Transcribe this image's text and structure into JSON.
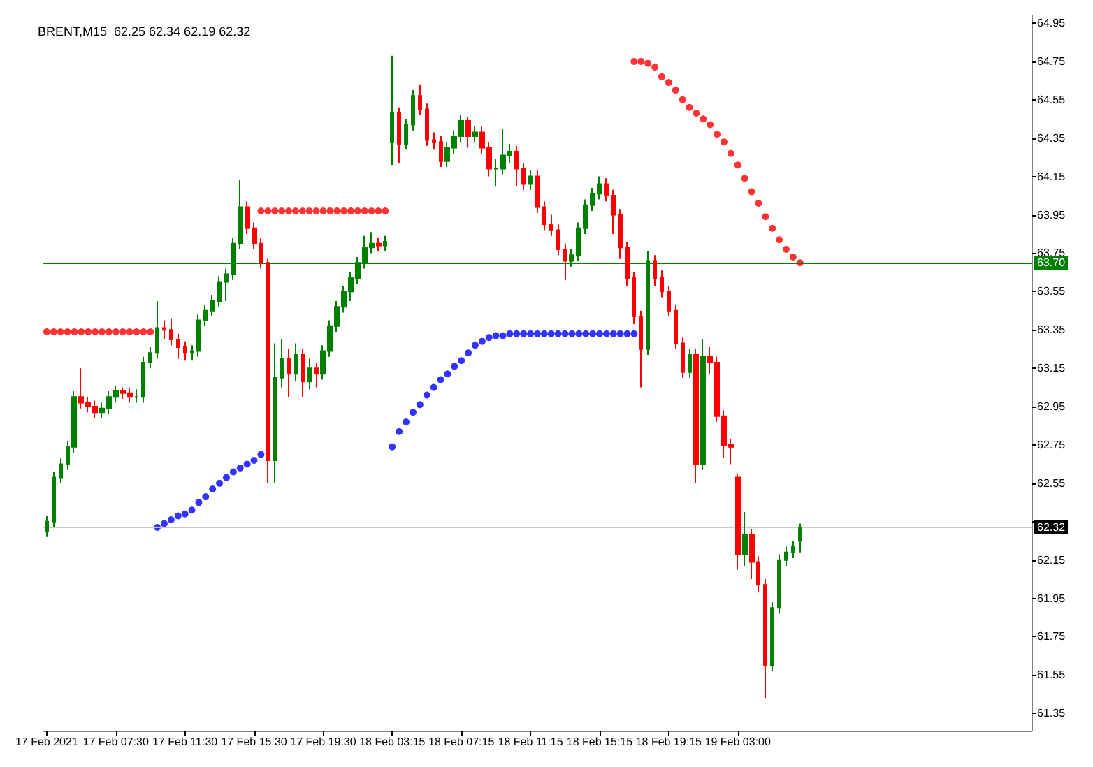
{
  "chart_data": {
    "type": "candlestick",
    "title": "BRENT,M15  62.25 62.34 62.19 62.32",
    "categories": [
      "17 Feb 2021",
      null,
      null,
      null,
      null,
      null,
      null,
      null,
      null,
      null,
      "17 Feb 07:30",
      null,
      null,
      null,
      null,
      null,
      null,
      null,
      null,
      null,
      "17 Feb 11:30",
      null,
      null,
      null,
      null,
      null,
      null,
      null,
      null,
      null,
      "17 Feb 15:30",
      null,
      null,
      null,
      null,
      null,
      null,
      null,
      null,
      null,
      "17 Feb 19:30",
      null,
      null,
      null,
      null,
      null,
      null,
      null,
      null,
      null,
      "18 Feb 03:15",
      null,
      null,
      null,
      null,
      null,
      null,
      null,
      null,
      null,
      "18 Feb 07:15",
      null,
      null,
      null,
      null,
      null,
      null,
      null,
      null,
      null,
      "18 Feb 11:15",
      null,
      null,
      null,
      null,
      null,
      null,
      null,
      null,
      null,
      "18 Feb 15:15",
      null,
      null,
      null,
      null,
      null,
      null,
      null,
      null,
      null,
      "18 Feb 19:15",
      null,
      null,
      null,
      null,
      null,
      null,
      null,
      null,
      null,
      "19 Feb 03:00",
      null,
      null,
      null,
      null,
      null,
      null,
      null,
      null,
      null,
      null,
      null,
      null,
      null,
      null,
      null,
      null,
      null,
      null,
      null,
      null,
      null,
      null,
      null,
      null,
      null,
      null,
      null,
      null,
      null,
      null,
      null,
      null,
      null,
      null,
      null,
      null,
      null,
      null,
      null,
      null,
      null,
      null
    ],
    "ohlc": [
      [
        62.3,
        62.38,
        62.27,
        62.35
      ],
      [
        62.35,
        62.61,
        62.32,
        62.58
      ],
      [
        62.58,
        62.68,
        62.55,
        62.65
      ],
      [
        62.65,
        62.77,
        62.62,
        62.74
      ],
      [
        62.74,
        63.03,
        62.71,
        63.0
      ],
      [
        63.0,
        63.15,
        62.94,
        62.97
      ],
      [
        62.97,
        63.0,
        62.92,
        62.95
      ],
      [
        62.95,
        62.98,
        62.89,
        62.92
      ],
      [
        62.92,
        62.97,
        62.89,
        62.94
      ],
      [
        62.94,
        63.03,
        62.91,
        63.0
      ],
      [
        63.0,
        63.06,
        62.97,
        63.03
      ],
      [
        63.03,
        63.05,
        62.99,
        63.02
      ],
      [
        63.02,
        63.05,
        62.97,
        63.0
      ],
      [
        63.0,
        63.04,
        62.97,
        63.0
      ],
      [
        63.0,
        63.21,
        62.97,
        63.18
      ],
      [
        63.18,
        63.26,
        63.15,
        63.23
      ],
      [
        63.23,
        63.5,
        63.2,
        63.36
      ],
      [
        63.36,
        63.4,
        63.3,
        63.35
      ],
      [
        63.35,
        63.41,
        63.27,
        63.3
      ],
      [
        63.3,
        63.33,
        63.2,
        63.26
      ],
      [
        63.26,
        63.29,
        63.19,
        63.23
      ],
      [
        63.23,
        63.27,
        63.19,
        63.24
      ],
      [
        63.24,
        63.43,
        63.21,
        63.4
      ],
      [
        63.4,
        63.48,
        63.37,
        63.45
      ],
      [
        63.45,
        63.53,
        63.42,
        63.5
      ],
      [
        63.5,
        63.63,
        63.47,
        63.6
      ],
      [
        63.6,
        63.67,
        63.5,
        63.64
      ],
      [
        63.64,
        63.83,
        63.61,
        63.8
      ],
      [
        63.8,
        64.13,
        63.77,
        63.99
      ],
      [
        63.99,
        64.02,
        63.85,
        63.88
      ],
      [
        63.88,
        63.91,
        63.77,
        63.8
      ],
      [
        63.8,
        63.83,
        63.67,
        63.7
      ],
      [
        63.7,
        63.72,
        62.55,
        62.67
      ],
      [
        62.67,
        63.28,
        62.55,
        63.1
      ],
      [
        63.1,
        63.3,
        63.05,
        63.2
      ],
      [
        63.2,
        63.25,
        63.0,
        63.12
      ],
      [
        63.12,
        63.28,
        63.08,
        63.22
      ],
      [
        63.22,
        63.25,
        63.0,
        63.08
      ],
      [
        63.08,
        63.2,
        63.04,
        63.15
      ],
      [
        63.15,
        63.18,
        63.05,
        63.12
      ],
      [
        63.12,
        63.27,
        63.09,
        63.24
      ],
      [
        63.24,
        63.4,
        63.21,
        63.37
      ],
      [
        63.37,
        63.5,
        63.34,
        63.47
      ],
      [
        63.47,
        63.58,
        63.44,
        63.55
      ],
      [
        63.55,
        63.65,
        63.5,
        63.62
      ],
      [
        63.62,
        63.73,
        63.59,
        63.7
      ],
      [
        63.7,
        63.84,
        63.67,
        63.78
      ],
      [
        63.78,
        63.86,
        63.75,
        63.8
      ],
      [
        63.8,
        63.83,
        63.76,
        63.79
      ],
      [
        63.79,
        63.84,
        63.76,
        63.81
      ],
      [
        64.33,
        64.78,
        64.21,
        64.48
      ],
      [
        64.48,
        64.51,
        64.22,
        64.32
      ],
      [
        64.32,
        64.45,
        64.29,
        64.42
      ],
      [
        64.42,
        64.6,
        64.39,
        64.57
      ],
      [
        64.57,
        64.63,
        64.47,
        64.5
      ],
      [
        64.5,
        64.53,
        64.31,
        64.34
      ],
      [
        64.34,
        64.38,
        64.29,
        64.33
      ],
      [
        64.33,
        64.36,
        64.2,
        64.23
      ],
      [
        64.23,
        64.33,
        64.2,
        64.3
      ],
      [
        64.3,
        64.39,
        64.27,
        64.36
      ],
      [
        64.36,
        64.47,
        64.33,
        64.44
      ],
      [
        64.44,
        64.46,
        64.3,
        64.36
      ],
      [
        64.36,
        64.41,
        64.33,
        64.38
      ],
      [
        64.38,
        64.41,
        64.27,
        64.3
      ],
      [
        64.3,
        64.33,
        64.15,
        64.19
      ],
      [
        64.19,
        64.24,
        64.1,
        64.19
      ],
      [
        64.19,
        64.4,
        64.16,
        64.26
      ],
      [
        64.26,
        64.32,
        64.22,
        64.28
      ],
      [
        64.28,
        64.31,
        64.1,
        64.19
      ],
      [
        64.19,
        64.22,
        64.08,
        64.11
      ],
      [
        64.11,
        64.18,
        64.08,
        64.15
      ],
      [
        64.15,
        64.18,
        63.96,
        63.99
      ],
      [
        63.99,
        64.02,
        63.87,
        63.9
      ],
      [
        63.9,
        63.95,
        63.84,
        63.87
      ],
      [
        63.87,
        63.9,
        63.74,
        63.77
      ],
      [
        63.77,
        63.8,
        63.61,
        63.71
      ],
      [
        63.71,
        63.77,
        63.68,
        63.74
      ],
      [
        63.74,
        63.91,
        63.71,
        63.88
      ],
      [
        63.88,
        64.03,
        63.85,
        64.0
      ],
      [
        64.0,
        64.09,
        63.97,
        64.06
      ],
      [
        64.06,
        64.15,
        64.03,
        64.11
      ],
      [
        64.11,
        64.14,
        64.02,
        64.05
      ],
      [
        64.05,
        64.08,
        63.85,
        63.95
      ],
      [
        63.95,
        63.98,
        63.72,
        63.78
      ],
      [
        63.78,
        63.81,
        63.58,
        63.62
      ],
      [
        63.62,
        63.65,
        63.38,
        63.42
      ],
      [
        63.42,
        63.45,
        63.05,
        63.25
      ],
      [
        63.25,
        63.76,
        63.22,
        63.71
      ],
      [
        63.71,
        63.74,
        63.58,
        63.62
      ],
      [
        63.62,
        63.66,
        63.52,
        63.55
      ],
      [
        63.55,
        63.58,
        63.42,
        63.45
      ],
      [
        63.45,
        63.48,
        63.25,
        63.28
      ],
      [
        63.28,
        63.31,
        63.1,
        63.13
      ],
      [
        63.13,
        63.25,
        63.1,
        63.22
      ],
      [
        63.22,
        63.25,
        62.55,
        62.65
      ],
      [
        62.65,
        63.3,
        62.62,
        63.21
      ],
      [
        63.21,
        63.26,
        63.12,
        63.18
      ],
      [
        63.18,
        63.21,
        62.87,
        62.9
      ],
      [
        62.9,
        62.93,
        62.68,
        62.75
      ],
      [
        62.75,
        62.78,
        62.65,
        62.74
      ],
      [
        62.58,
        62.6,
        62.1,
        62.18
      ],
      [
        62.18,
        62.4,
        62.12,
        62.28
      ],
      [
        62.28,
        62.31,
        62.05,
        62.14
      ],
      [
        62.14,
        62.17,
        61.98,
        62.02
      ],
      [
        62.02,
        62.05,
        61.43,
        61.6
      ],
      [
        61.6,
        61.93,
        61.57,
        61.9
      ],
      [
        61.9,
        62.18,
        61.87,
        62.15
      ],
      [
        62.15,
        62.22,
        62.12,
        62.19
      ],
      [
        62.19,
        62.25,
        62.16,
        62.22
      ],
      [
        62.25,
        62.34,
        62.19,
        62.32
      ],
      null,
      null,
      null,
      null,
      null,
      null,
      null,
      null,
      null,
      null,
      null,
      null,
      null,
      null,
      null,
      null,
      null,
      null,
      null,
      null,
      null,
      null,
      null,
      null,
      null,
      null,
      null,
      null,
      null,
      null,
      null,
      null,
      null
    ],
    "series": [
      {
        "type": "scatter",
        "color": "#ff0000",
        "values": [
          63.34,
          63.34,
          63.34,
          63.34,
          63.34,
          63.34,
          63.34,
          63.34,
          63.34,
          63.34,
          63.34,
          63.34,
          63.34,
          63.34,
          63.34,
          63.34,
          null,
          null,
          null,
          null,
          null,
          null,
          null,
          null,
          null,
          null,
          null,
          null,
          null,
          null,
          null,
          63.97,
          63.97,
          63.97,
          63.97,
          63.97,
          63.97,
          63.97,
          63.97,
          63.97,
          63.97,
          63.97,
          63.97,
          63.97,
          63.97,
          63.97,
          63.97,
          63.97,
          63.97,
          63.97,
          null,
          null,
          null,
          null,
          null,
          null,
          null,
          null,
          null,
          null,
          null,
          null,
          null,
          null,
          null,
          null,
          null,
          null,
          null,
          null,
          null,
          null,
          null,
          null,
          null,
          null,
          null,
          null,
          null,
          null,
          null,
          null,
          null,
          null,
          null,
          64.75,
          64.75,
          64.74,
          64.72,
          64.67,
          64.64,
          64.6,
          64.55,
          64.51,
          64.48,
          64.45,
          64.42,
          64.37,
          64.33,
          64.27,
          64.21,
          64.14,
          64.07,
          64.01,
          63.94,
          63.88,
          63.82,
          63.77,
          63.73,
          63.7,
          null,
          null,
          null,
          null,
          null,
          null,
          null,
          null,
          null,
          null,
          null,
          null,
          null,
          null,
          null,
          null,
          null,
          null,
          null,
          null,
          null,
          null,
          null,
          null,
          null,
          null,
          null,
          null,
          null,
          null,
          null,
          null,
          null
        ]
      },
      {
        "type": "scatter",
        "color": "#0000ff",
        "values": [
          null,
          null,
          null,
          null,
          null,
          null,
          null,
          null,
          null,
          null,
          null,
          null,
          null,
          null,
          null,
          null,
          62.32,
          62.34,
          62.36,
          62.38,
          62.39,
          62.41,
          62.45,
          62.48,
          62.52,
          62.55,
          62.58,
          62.61,
          62.63,
          62.65,
          62.67,
          62.7,
          null,
          null,
          null,
          null,
          null,
          null,
          null,
          null,
          null,
          null,
          null,
          null,
          null,
          null,
          null,
          null,
          null,
          null,
          62.74,
          62.82,
          62.87,
          62.92,
          62.96,
          63.01,
          63.05,
          63.09,
          63.12,
          63.16,
          63.19,
          63.23,
          63.27,
          63.29,
          63.31,
          63.32,
          63.32,
          63.33,
          63.33,
          63.33,
          63.33,
          63.33,
          63.33,
          63.33,
          63.33,
          63.33,
          63.33,
          63.33,
          63.33,
          63.33,
          63.33,
          63.33,
          63.33,
          63.33,
          63.33,
          63.33,
          null,
          null,
          null,
          null,
          null,
          null,
          null,
          null,
          null,
          null,
          null,
          null,
          null,
          null,
          null,
          null,
          null,
          null,
          null,
          null,
          null,
          null,
          null,
          null,
          null,
          null,
          null,
          null,
          null,
          null,
          null,
          null,
          null,
          null,
          null,
          null,
          null,
          null,
          null,
          null,
          null,
          null,
          null,
          null,
          null,
          null,
          null,
          null,
          null,
          null,
          null,
          null,
          null,
          null,
          null,
          null,
          null
        ]
      }
    ],
    "ylim": [
      61.26,
      64.99
    ],
    "yticks": [
      61.35,
      61.55,
      61.75,
      61.95,
      62.15,
      {
        "value": 62.35,
        "label": null
      },
      62.55,
      62.75,
      62.95,
      63.15,
      63.35,
      63.55,
      63.75,
      63.95,
      64.15,
      64.35,
      64.55,
      64.75,
      64.95
    ],
    "ref_lines": [
      {
        "axis": "y",
        "value": 63.7,
        "label": "63.70",
        "color": "#008000",
        "line_style": "solid"
      },
      {
        "axis": "y",
        "value": 62.32,
        "label": "62.32",
        "color": "#c8c8c8",
        "line_style": "solid"
      }
    ],
    "marker": "circle",
    "grid": false
  }
}
